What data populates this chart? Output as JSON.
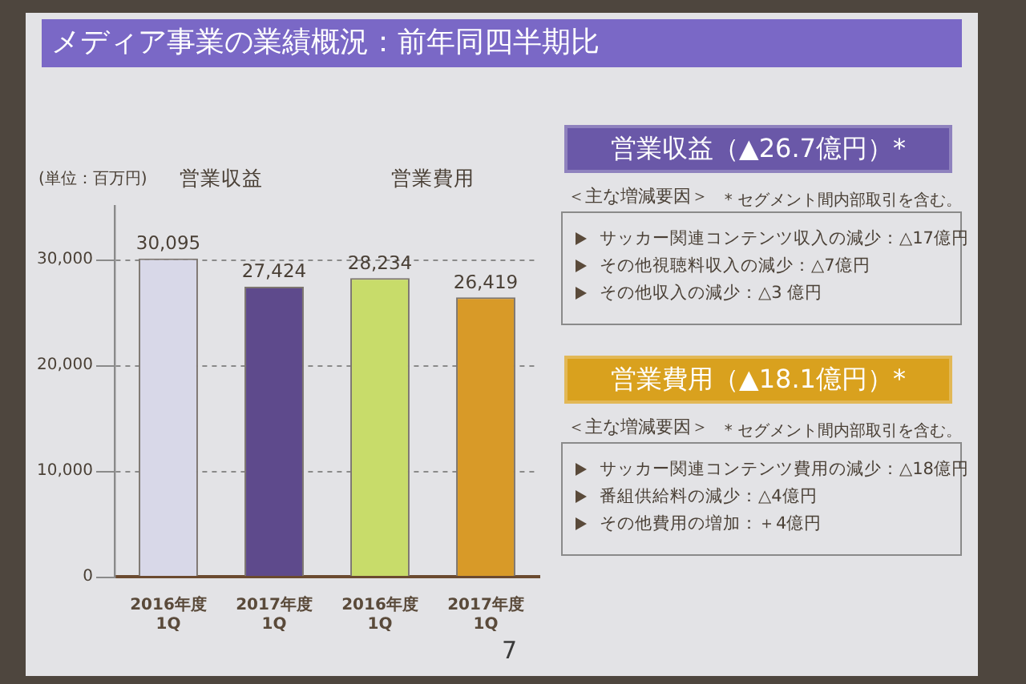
{
  "chart_data": [
    {
      "type": "bar",
      "title": "メディア事業の業績概況：前年同四半期比",
      "ylabel": "(単位：百万円)",
      "categories": [
        "2016年度 1Q",
        "2017年度 1Q",
        "2016年度 1Q",
        "2017年度 1Q"
      ],
      "values": [
        30095,
        27424,
        28234,
        26419
      ],
      "colors": [
        "#d8d8e8",
        "#5e4a8c",
        "#c8dc6a",
        "#d89a28"
      ],
      "value_labels": [
        "30,095",
        "27,424",
        "28,234",
        "26,419"
      ],
      "ylim": [
        0,
        35000
      ],
      "yticks": [
        0,
        {
          "value": 10000,
          "label": "10,000"
        },
        {
          "value": 20000,
          "label": "20,000"
        },
        {
          "value": 30000,
          "label": "30,000"
        }
      ],
      "grid": "y",
      "annotations": [
        "営業収益",
        "営業費用",
        "7"
      ]
    },
    {
      "type": "other",
      "title": "営業収益（▲26.7億円）*",
      "subtitle": "＜主な増減要因＞",
      "color": "#6a58a8",
      "annotations": [
        "* セグメント間内部取引を含む。",
        "サッカー関連コンテンツ収入の減少：△17億円",
        "その他視聴料収入の減少：△7億円",
        "その他収入の減少：△3 億円"
      ]
    },
    {
      "type": "other",
      "title": "営業費用（▲18.1億円）*",
      "subtitle": "＜主な増減要因＞",
      "color": "#d9a11e",
      "annotations": [
        "* セグメント間内部取引を含む。",
        "サッカー関連コンテンツ費用の減少：△18億円",
        "番組供給料の減少：△4億円",
        "その他費用の増加：＋4億円"
      ]
    }
  ]
}
